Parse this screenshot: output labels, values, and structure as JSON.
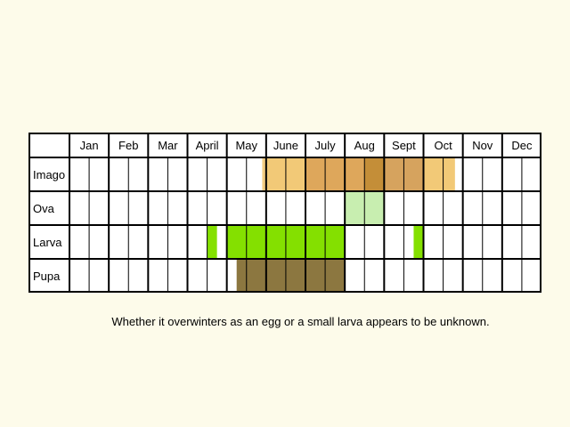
{
  "chart_data": {
    "type": "table",
    "months": [
      "Jan",
      "Feb",
      "Mar",
      "April",
      "May",
      "June",
      "July",
      "Aug",
      "Sept",
      "Oct",
      "Nov",
      "Dec"
    ],
    "stages": [
      {
        "name": "Imago",
        "segments": [
          {
            "start": 9.8,
            "end": 10.0,
            "color": "#f4cd82"
          },
          {
            "start": 10.0,
            "end": 12.0,
            "color": "#f2c977"
          },
          {
            "start": 12.0,
            "end": 15.0,
            "color": "#dea75b"
          },
          {
            "start": 15.0,
            "end": 16.0,
            "color": "#c48e38"
          },
          {
            "start": 16.0,
            "end": 18.0,
            "color": "#d6a35e"
          },
          {
            "start": 18.0,
            "end": 19.6,
            "color": "#f2c977"
          }
        ]
      },
      {
        "name": "Ova",
        "segments": [
          {
            "start": 14.0,
            "end": 16.0,
            "color": "#c8eeb0"
          }
        ]
      },
      {
        "name": "Larva",
        "segments": [
          {
            "start": 7.0,
            "end": 7.5,
            "color": "#84e000"
          },
          {
            "start": 8.0,
            "end": 14.0,
            "color": "#84e000"
          },
          {
            "start": 17.5,
            "end": 18.0,
            "color": "#84e000"
          }
        ]
      },
      {
        "name": "Pupa",
        "segments": [
          {
            "start": 8.5,
            "end": 14.0,
            "color": "#8c7740"
          }
        ]
      }
    ]
  },
  "note": "Whether it overwinters as an egg or a small larva appears to be unknown."
}
